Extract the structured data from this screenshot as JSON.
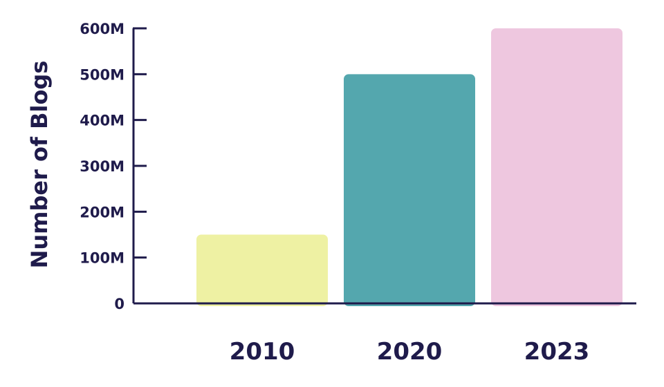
{
  "chart_data": {
    "type": "bar",
    "categories": [
      "2010",
      "2020",
      "2023"
    ],
    "values": [
      150,
      500,
      600
    ],
    "ylabel": "Number of Blogs",
    "xlabel": "",
    "ylim": [
      0,
      600
    ],
    "y_ticks": [
      0,
      100,
      200,
      300,
      400,
      500,
      600
    ],
    "y_tick_labels": [
      "0",
      "100M",
      "200M",
      "300M",
      "400M",
      "500M",
      "600M"
    ],
    "bar_colors": [
      "#EEF1A3",
      "#54A7AE",
      "#EEC7DF"
    ],
    "axis_color": "#1F1B4B",
    "text_color": "#1F1B4B",
    "grid": false
  }
}
